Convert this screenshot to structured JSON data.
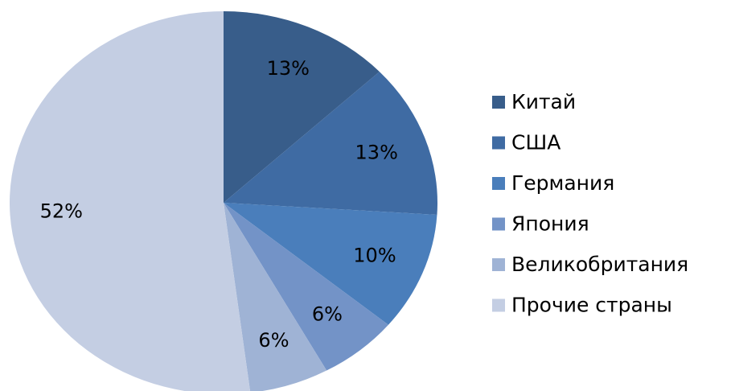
{
  "chart_data": {
    "type": "pie",
    "categories": [
      "Китай",
      "США",
      "Германия",
      "Япония",
      "Великобритания",
      "Прочие страны"
    ],
    "values": [
      13,
      13,
      10,
      6,
      6,
      52
    ],
    "value_labels": [
      "13%",
      "13%",
      "10%",
      "6%",
      "6%",
      "52%"
    ],
    "colors": [
      "#385d8a",
      "#3f6ba3",
      "#4a7ebb",
      "#7393c7",
      "#9fb3d5",
      "#c4cee3"
    ],
    "legend": "right"
  }
}
